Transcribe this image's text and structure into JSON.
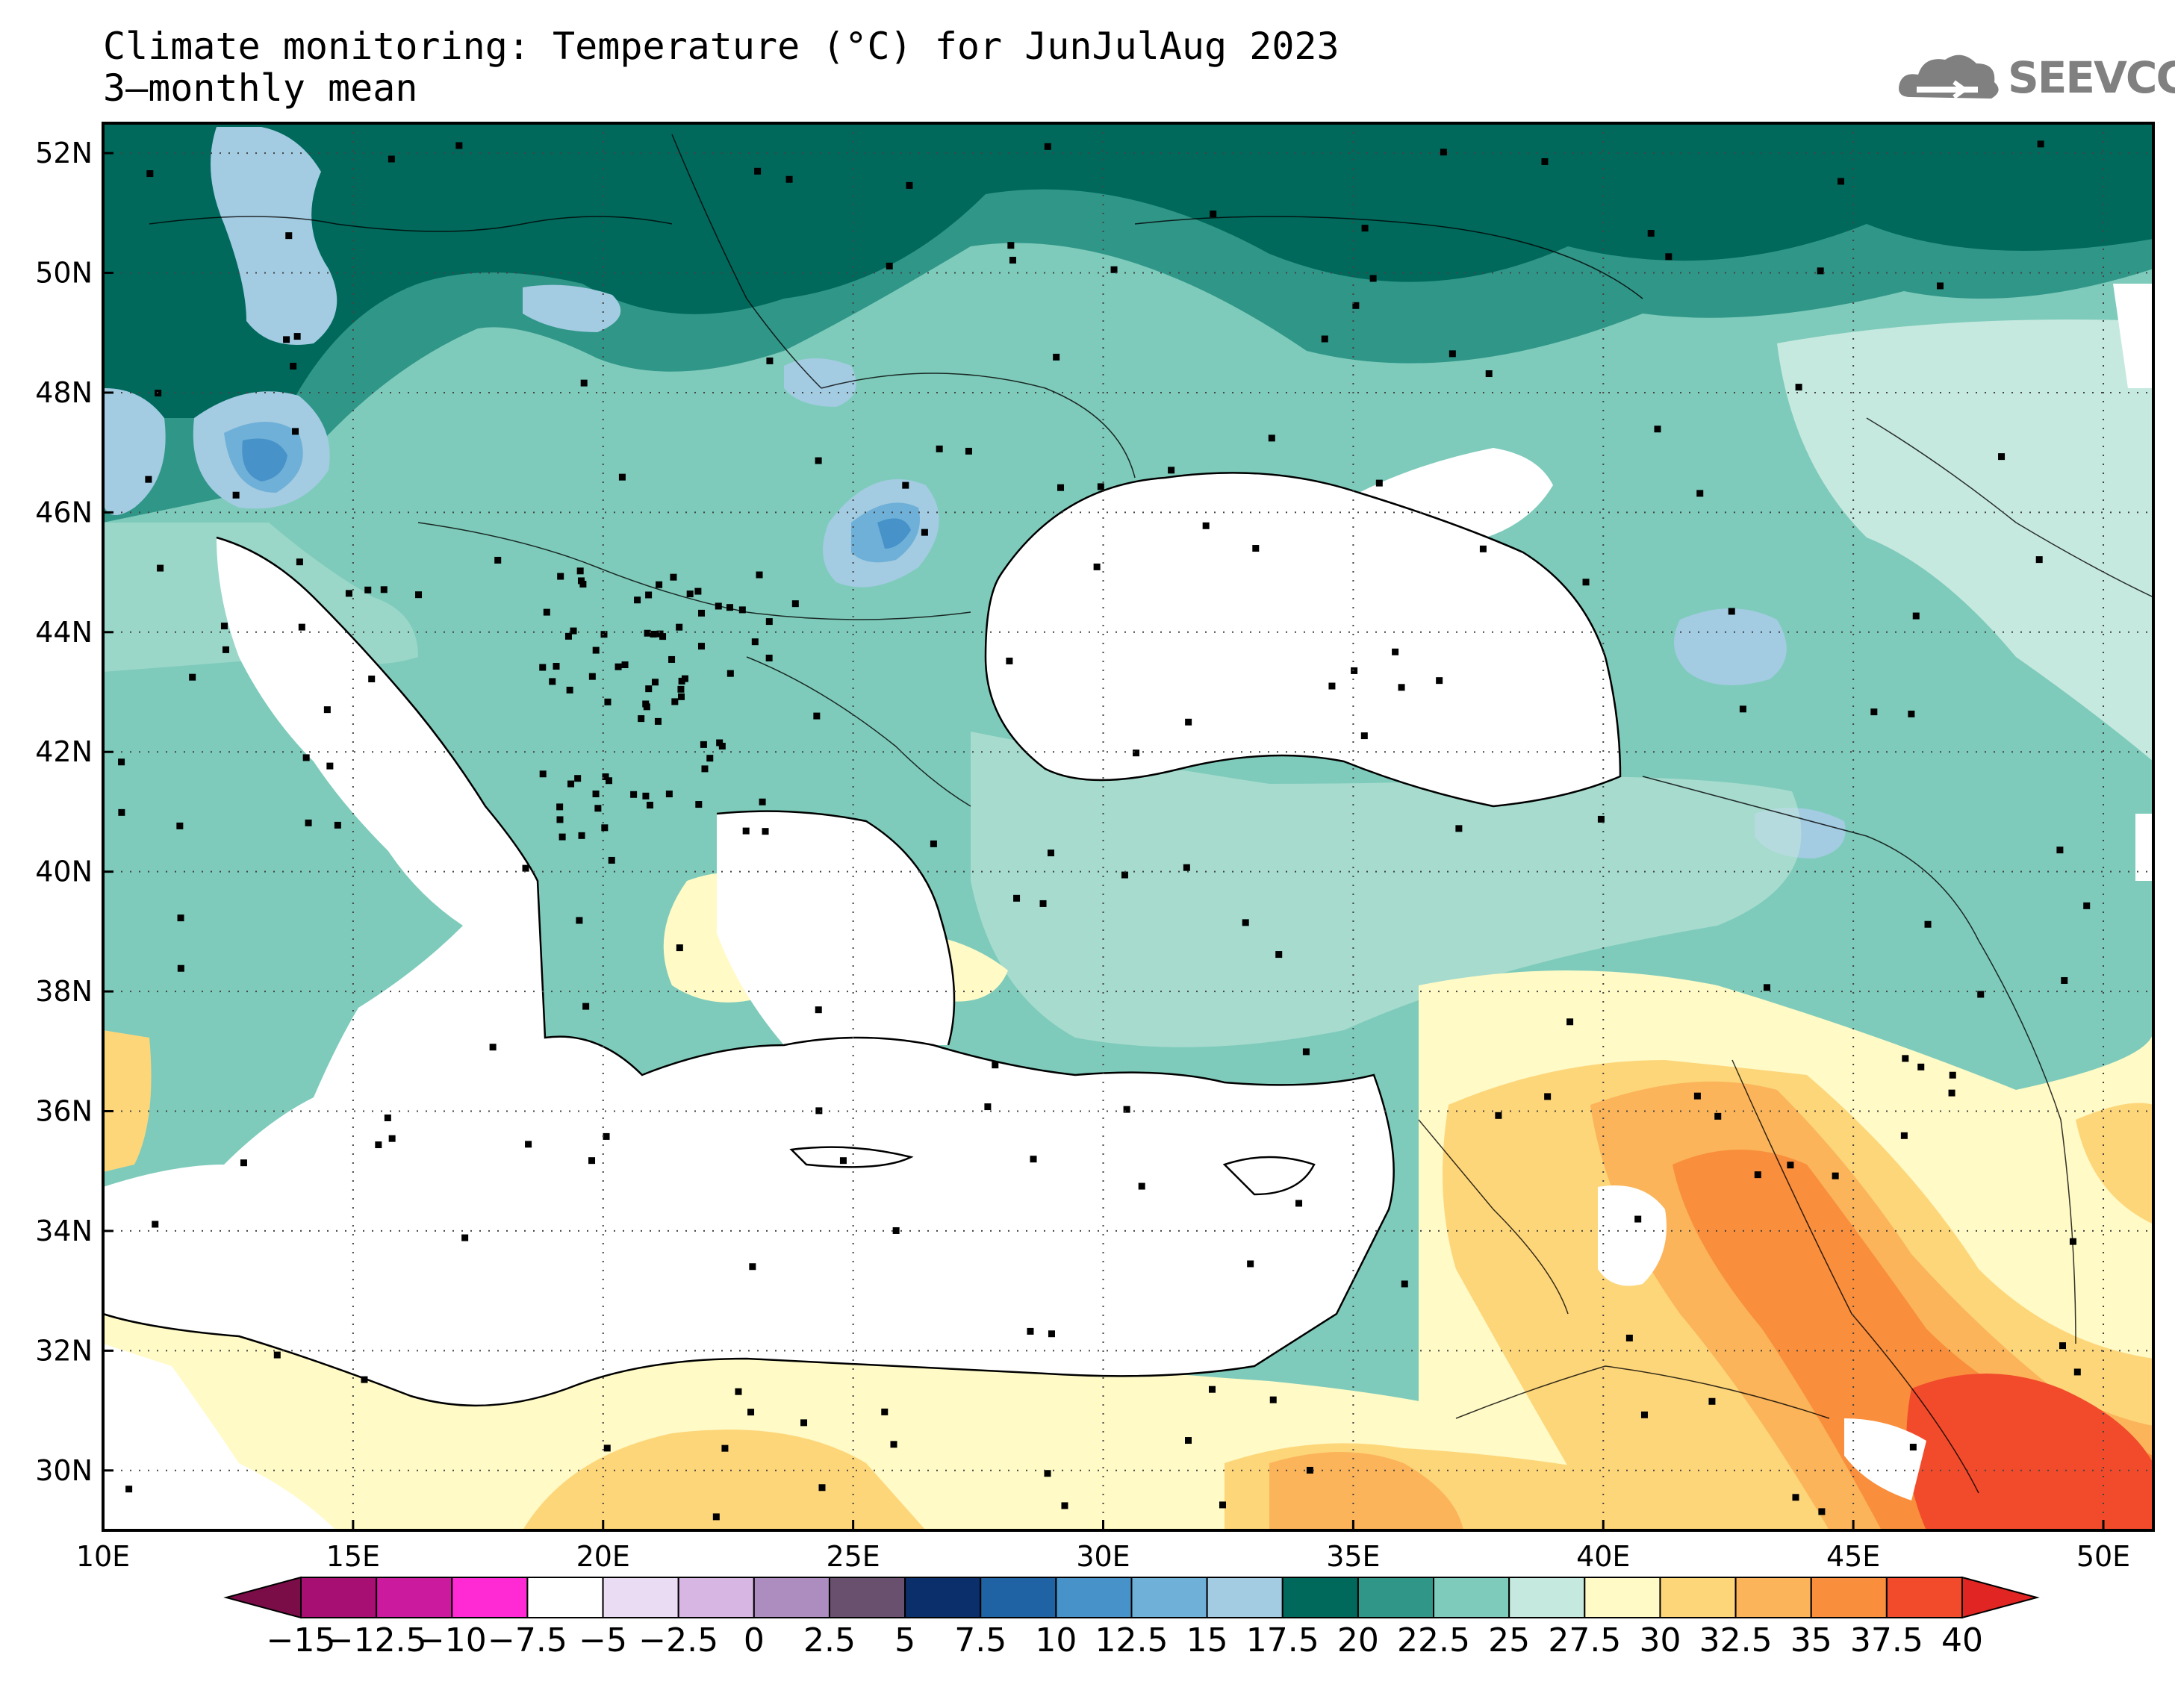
{
  "title": {
    "line1": "Climate monitoring: Temperature (°C) for JunJulAug 2023",
    "line2": "3–monthly mean"
  },
  "logo": {
    "text": "SEEVCCC"
  },
  "map": {
    "lon_range": [
      10,
      51
    ],
    "lat_range": [
      29,
      52.5
    ],
    "lon_ticks": [
      "10E",
      "15E",
      "20E",
      "25E",
      "30E",
      "35E",
      "40E",
      "45E",
      "50E"
    ],
    "lat_ticks": [
      "30N",
      "32N",
      "34N",
      "36N",
      "38N",
      "40N",
      "42N",
      "44N",
      "46N",
      "48N",
      "50N",
      "52N"
    ],
    "variable": "Temperature (°C)",
    "period": "JunJulAug 2023",
    "grid": true
  },
  "colorbar": {
    "labels": [
      "−15",
      "−12.5",
      "−10",
      "−7.5",
      "−5",
      "−2.5",
      "0",
      "2.5",
      "5",
      "7.5",
      "10",
      "12.5",
      "15",
      "17.5",
      "20",
      "22.5",
      "25",
      "27.5",
      "30",
      "32.5",
      "35",
      "37.5",
      "40"
    ],
    "colors": [
      "#7a0d48",
      "#a80f73",
      "#cc1a9e",
      "#ff2ad4",
      "#ffffff",
      "#eadcf3",
      "#d7b6e3",
      "#ad8cc0",
      "#69506e",
      "#0b2f6b",
      "#1f63a4",
      "#4692c9",
      "#6fb0d8",
      "#a3cbe1",
      "#00695c",
      "#309688",
      "#7ecbbb",
      "#c6e9df",
      "#fffac6",
      "#fed67a",
      "#fbb45a",
      "#f98e3c",
      "#f24b2c",
      "#e02523"
    ]
  },
  "palette": {
    "t15": "#a3cbe1",
    "t12": "#6fb0d8",
    "t10": "#4692c9",
    "t7": "#1f63a4",
    "t17": "#00695c",
    "t20": "#309688",
    "t22": "#7ecbbb",
    "t25": "#c6e9df",
    "t27": "#fffac6",
    "t30": "#fed67a",
    "t32": "#fbb45a",
    "t35": "#f98e3c",
    "t37": "#f24b2c"
  }
}
